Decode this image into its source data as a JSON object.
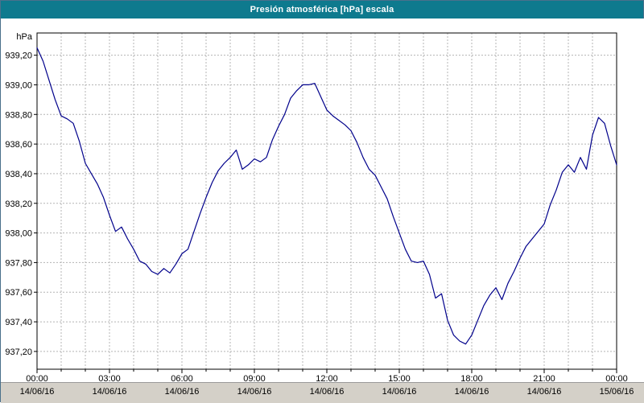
{
  "window": {
    "title": "Presión atmosférica [hPa] escala"
  },
  "colors": {
    "titlebar_bg": "#0e7a8e",
    "titlebar_text": "#ffffff",
    "line": "#00008b",
    "grid": "#b4b4b4",
    "plot_border": "#000000",
    "bottom_bar_bg": "#d4d0c8",
    "window_border": "#4a708b"
  },
  "chart_data": {
    "type": "line",
    "title": "Presión atmosférica [hPa] escala",
    "xlabel": "",
    "ylabel": "hPa",
    "grid": true,
    "legend_position": "none",
    "ylim": [
      937.08,
      939.35
    ],
    "xlim_hours": [
      0,
      24
    ],
    "yticks": [
      {
        "value": 939.2,
        "label": "939,20"
      },
      {
        "value": 939.0,
        "label": "939,00"
      },
      {
        "value": 938.8,
        "label": "938,80"
      },
      {
        "value": 938.6,
        "label": "938,60"
      },
      {
        "value": 938.4,
        "label": "938,40"
      },
      {
        "value": 938.2,
        "label": "938,20"
      },
      {
        "value": 938.0,
        "label": "938,00"
      },
      {
        "value": 937.8,
        "label": "937,80"
      },
      {
        "value": 937.6,
        "label": "937,60"
      },
      {
        "value": 937.4,
        "label": "937,40"
      },
      {
        "value": 937.2,
        "label": "937,20"
      }
    ],
    "xticks": [
      {
        "hour": 0,
        "time": "00:00",
        "date": "14/06/16"
      },
      {
        "hour": 3,
        "time": "03:00",
        "date": "14/06/16"
      },
      {
        "hour": 6,
        "time": "06:00",
        "date": "14/06/16"
      },
      {
        "hour": 9,
        "time": "09:00",
        "date": "14/06/16"
      },
      {
        "hour": 12,
        "time": "12:00",
        "date": "14/06/16"
      },
      {
        "hour": 15,
        "time": "15:00",
        "date": "14/06/16"
      },
      {
        "hour": 18,
        "time": "18:00",
        "date": "14/06/16"
      },
      {
        "hour": 21,
        "time": "21:00",
        "date": "14/06/16"
      },
      {
        "hour": 24,
        "time": "00:00",
        "date": "15/06/16"
      }
    ],
    "series": [
      {
        "name": "Presión atmosférica [hPa]",
        "color": "#00008b",
        "x_start_hour": 0,
        "x_step_hours": 0.25,
        "values": [
          939.25,
          939.16,
          939.03,
          938.9,
          938.79,
          938.77,
          938.74,
          938.62,
          938.47,
          938.4,
          938.33,
          938.24,
          938.12,
          938.01,
          938.04,
          937.96,
          937.89,
          937.81,
          937.79,
          937.74,
          937.72,
          937.76,
          937.73,
          937.79,
          937.86,
          937.89,
          938.01,
          938.13,
          938.24,
          938.34,
          938.42,
          938.47,
          938.51,
          938.56,
          938.43,
          938.46,
          938.5,
          938.48,
          938.51,
          938.63,
          938.72,
          938.8,
          938.91,
          938.96,
          939.0,
          939.0,
          939.01,
          938.92,
          938.83,
          938.79,
          938.76,
          938.73,
          938.69,
          938.61,
          938.51,
          938.43,
          938.39,
          938.31,
          938.23,
          938.11,
          938.0,
          937.89,
          937.81,
          937.8,
          937.81,
          937.72,
          937.56,
          937.59,
          937.41,
          937.31,
          937.27,
          937.25,
          937.31,
          937.41,
          937.51,
          937.58,
          937.63,
          937.55,
          937.66,
          937.74,
          937.83,
          937.91,
          937.96,
          938.01,
          938.06,
          938.19,
          938.29,
          938.41,
          938.46,
          938.41,
          938.51,
          938.43,
          938.66,
          938.78,
          938.74,
          938.59,
          938.46
        ]
      }
    ]
  }
}
